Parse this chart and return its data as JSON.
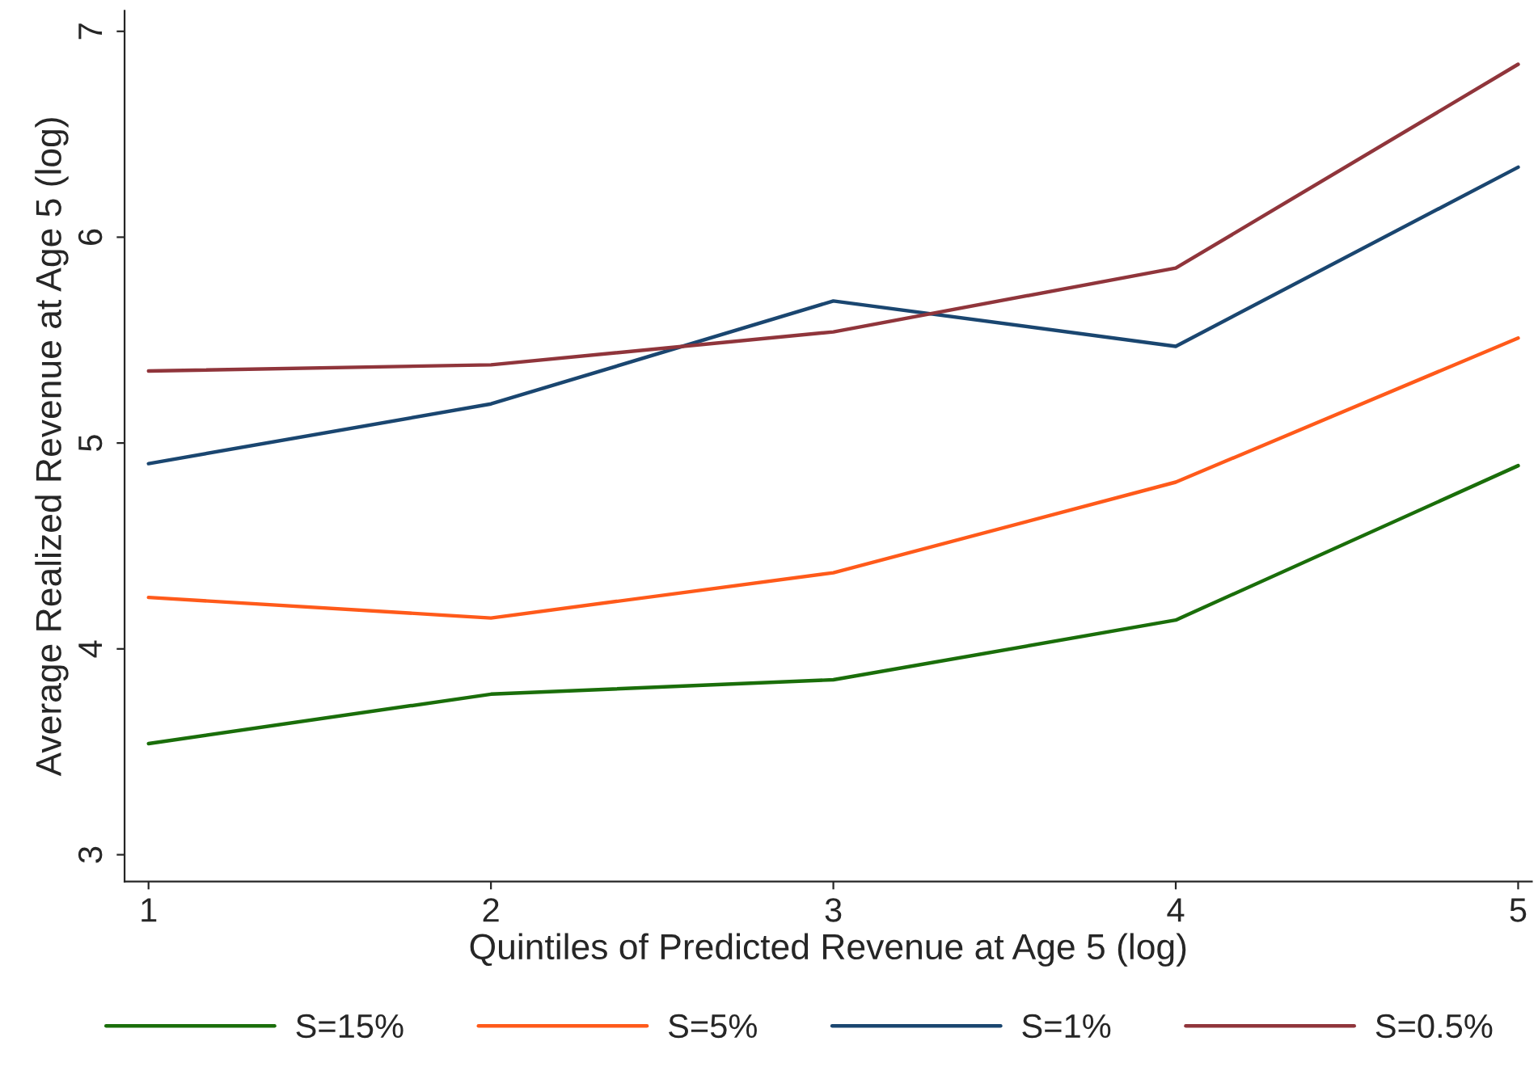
{
  "chart_data": {
    "type": "line",
    "xlabel": "Quintiles of Predicted Revenue at Age 5 (log)",
    "ylabel": "Average Realized Revenue at Age 5 (log)",
    "x": [
      1,
      2,
      3,
      4,
      5
    ],
    "series": [
      {
        "name": "S=15%",
        "color": "#1a6e0a",
        "values": [
          3.54,
          3.78,
          3.85,
          4.14,
          4.89
        ]
      },
      {
        "name": "S=5%",
        "color": "#ff5a1a",
        "values": [
          4.25,
          4.15,
          4.37,
          4.81,
          5.51
        ]
      },
      {
        "name": "S=1%",
        "color": "#1a4670",
        "values": [
          4.9,
          5.19,
          5.69,
          5.47,
          6.34
        ]
      },
      {
        "name": "S=0.5%",
        "color": "#90353b",
        "values": [
          5.35,
          5.38,
          5.54,
          5.85,
          6.84
        ]
      }
    ],
    "xlim": [
      0.93,
      5.04
    ],
    "ylim": [
      2.87,
      7.1
    ],
    "xticks": [
      1,
      2,
      3,
      4,
      5
    ],
    "yticks": [
      3,
      4,
      5,
      6,
      7
    ],
    "grid": false,
    "legend": "bottom",
    "marker": "none",
    "line_style": "solid"
  }
}
